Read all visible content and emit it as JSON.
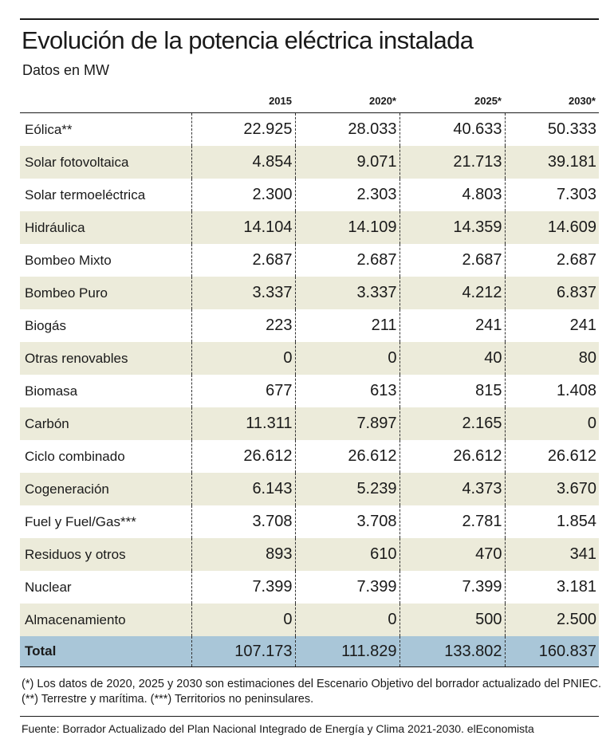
{
  "title": "Evolución de la potencia eléctrica instalada",
  "subtitle": "Datos en MW",
  "footnote": "(*) Los datos de 2020, 2025 y 2030 son estimaciones del Escenario Objetivo del borrador actualizado del PNIEC. (**) Terrestre y marítima. (***) Territorios no peninsulares.",
  "source": "Fuente: Borrador Actualizado del Plan Nacional Integrado de Energía y Clima 2021-2030.   elEconomista",
  "colors": {
    "row_shade": "#ecebda",
    "total_row": "#a9c6d8"
  },
  "chart_data": {
    "type": "table",
    "columns": [
      "2015",
      "2020*",
      "2025*",
      "2030*"
    ],
    "rows": [
      {
        "label": "Eólica**",
        "values": [
          "22.925",
          "28.033",
          "40.633",
          "50.333"
        ]
      },
      {
        "label": "Solar fotovoltaica",
        "values": [
          "4.854",
          "9.071",
          "21.713",
          "39.181"
        ]
      },
      {
        "label": "Solar termoeléctrica",
        "values": [
          "2.300",
          "2.303",
          "4.803",
          "7.303"
        ]
      },
      {
        "label": "Hidráulica",
        "values": [
          "14.104",
          "14.109",
          "14.359",
          "14.609"
        ]
      },
      {
        "label": "Bombeo Mixto",
        "values": [
          "2.687",
          "2.687",
          "2.687",
          "2.687"
        ]
      },
      {
        "label": "Bombeo Puro",
        "values": [
          "3.337",
          "3.337",
          "4.212",
          "6.837"
        ]
      },
      {
        "label": "Biogás",
        "values": [
          "223",
          "211",
          "241",
          "241"
        ]
      },
      {
        "label": "Otras renovables",
        "values": [
          "0",
          "0",
          "40",
          "80"
        ]
      },
      {
        "label": "Biomasa",
        "values": [
          "677",
          "613",
          "815",
          "1.408"
        ]
      },
      {
        "label": "Carbón",
        "values": [
          "11.311",
          "7.897",
          "2.165",
          "0"
        ]
      },
      {
        "label": "Ciclo combinado",
        "values": [
          "26.612",
          "26.612",
          "26.612",
          "26.612"
        ]
      },
      {
        "label": "Cogeneración",
        "values": [
          "6.143",
          "5.239",
          "4.373",
          "3.670"
        ]
      },
      {
        "label": "Fuel y Fuel/Gas***",
        "values": [
          "3.708",
          "3.708",
          "2.781",
          "1.854"
        ]
      },
      {
        "label": "Residuos y otros",
        "values": [
          "893",
          "610",
          "470",
          "341"
        ]
      },
      {
        "label": "Nuclear",
        "values": [
          "7.399",
          "7.399",
          "7.399",
          "3.181"
        ]
      },
      {
        "label": "Almacenamiento",
        "values": [
          "0",
          "0",
          "500",
          "2.500"
        ]
      }
    ],
    "total": {
      "label": "Total",
      "values": [
        "107.173",
        "111.829",
        "133.802",
        "160.837"
      ]
    }
  }
}
